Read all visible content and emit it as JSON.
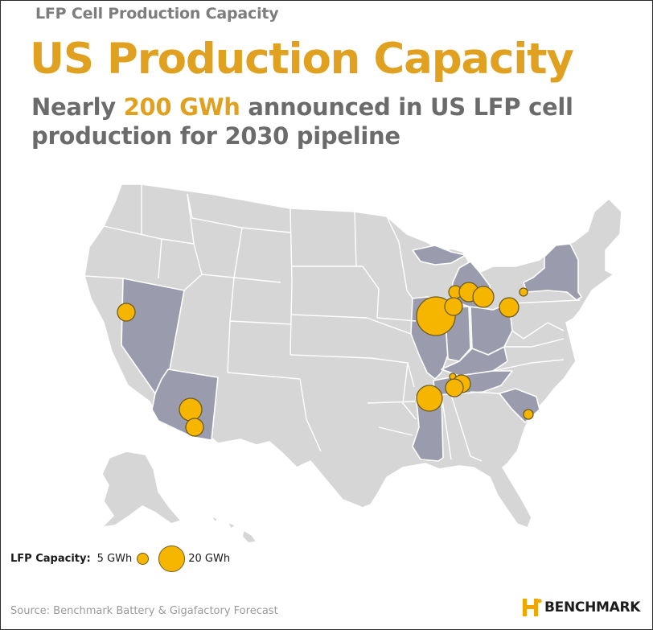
{
  "header": {
    "kicker": "LFP Cell Production Capacity",
    "title": "US Production Capacity",
    "subtitle_pre": "Nearly ",
    "subtitle_highlight": "200 GWh",
    "subtitle_post": " announced in US LFP cell production for 2030 pipeline"
  },
  "map": {
    "region": "United States",
    "highlighted_states": [
      "Nevada",
      "Arizona",
      "Michigan",
      "Illinois",
      "Indiana",
      "Ohio",
      "Kentucky",
      "Tennessee",
      "Mississippi",
      "South Carolina",
      "New York"
    ],
    "colors": {
      "state_fill": "#d6d6d6",
      "state_border": "#ffffff",
      "highlight_fill": "#9a9cad",
      "bubble_fill": "#f6b600",
      "bubble_stroke": "#6e5a20"
    },
    "facilities_gwh": [
      {
        "location": "Northern California",
        "capacity_gwh": 5
      },
      {
        "location": "Arizona (Phoenix area)",
        "capacity_gwh": 10
      },
      {
        "location": "Arizona (Tucson area)",
        "capacity_gwh": 5
      },
      {
        "location": "Illinois",
        "capacity_gwh": 30
      },
      {
        "location": "Michigan (west)",
        "capacity_gwh": 3
      },
      {
        "location": "Michigan (central)",
        "capacity_gwh": 7
      },
      {
        "location": "Michigan (east)",
        "capacity_gwh": 8
      },
      {
        "location": "Michigan (south)",
        "capacity_gwh": 6
      },
      {
        "location": "Ohio / NW Pennsylvania",
        "capacity_gwh": 6
      },
      {
        "location": "Upstate New York",
        "capacity_gwh": 1
      },
      {
        "location": "Tennessee (Middle)",
        "capacity_gwh": 1
      },
      {
        "location": "Tennessee (Nashville area)",
        "capacity_gwh": 5
      },
      {
        "location": "Kentucky / Tennessee border",
        "capacity_gwh": 6
      },
      {
        "location": "Mississippi / Tennessee",
        "capacity_gwh": 12
      },
      {
        "location": "South Carolina",
        "capacity_gwh": 2
      }
    ]
  },
  "legend": {
    "label": "LFP Capacity:",
    "small_label": "5 GWh",
    "large_label": "20 GWh"
  },
  "footer": {
    "source": "Source: Benchmark Battery & Gigafactory Forecast",
    "logo_text": "BENCHMARK"
  }
}
